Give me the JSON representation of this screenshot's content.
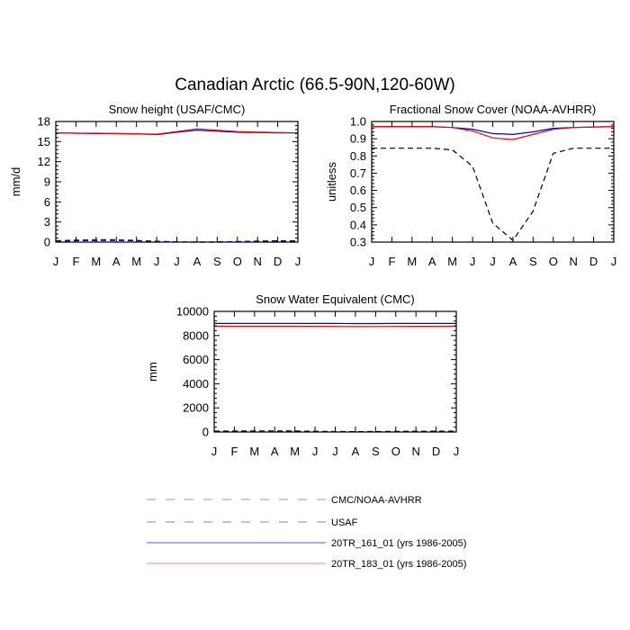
{
  "figure": {
    "title": "Canadian Arctic (66.5-90N,120-60W)"
  },
  "colors": {
    "cmc": "#000000",
    "usaf": "#0000cc",
    "r161": "#0000cc",
    "r183": "#ff0000",
    "legend_dash": "#9a9aa0",
    "legend_r161": "#5a5acc",
    "legend_r183": "#ff8080"
  },
  "legend": [
    {
      "key": "cmc",
      "label": "CMC/NOAA-AVHRR",
      "style": "dash"
    },
    {
      "key": "usaf",
      "label": "USAF",
      "style": "dash"
    },
    {
      "key": "r161",
      "label": "20TR_161_01 (yrs 1986-2005)",
      "style": "solid"
    },
    {
      "key": "r183",
      "label": "20TR_183_01 (yrs 1986-2005)",
      "style": "solid"
    }
  ],
  "chart_data": [
    {
      "type": "line",
      "title": "Snow height (USAF/CMC)",
      "ylabel": "mm/d",
      "xlabel": "",
      "categories": [
        "J",
        "F",
        "M",
        "A",
        "M",
        "J",
        "J",
        "A",
        "S",
        "O",
        "N",
        "D",
        "J"
      ],
      "ylim": [
        0,
        18
      ],
      "yticks": [
        "0",
        "3",
        "6",
        "9",
        "12",
        "15",
        "18"
      ],
      "series": [
        {
          "key": "r161",
          "values": [
            16.3,
            16.25,
            16.2,
            16.2,
            16.15,
            16.05,
            16.4,
            16.7,
            16.55,
            16.4,
            16.35,
            16.3,
            16.3
          ]
        },
        {
          "key": "r183",
          "values": [
            16.3,
            16.25,
            16.25,
            16.2,
            16.15,
            16.1,
            16.5,
            16.9,
            16.7,
            16.5,
            16.4,
            16.35,
            16.3
          ]
        },
        {
          "key": "cmc",
          "values": [
            0.15,
            0.2,
            0.25,
            0.25,
            0.2,
            0.1,
            0.02,
            0.0,
            0.0,
            0.05,
            0.1,
            0.15,
            0.15
          ]
        },
        {
          "key": "usaf",
          "values": [
            0.2,
            0.3,
            0.35,
            0.35,
            0.25,
            0.12,
            0.03,
            0.0,
            0.02,
            0.08,
            0.15,
            0.2,
            0.2
          ]
        }
      ]
    },
    {
      "type": "line",
      "title": "Fractional Snow Cover (NOAA-AVHRR)",
      "ylabel": "unitless",
      "xlabel": "",
      "categories": [
        "J",
        "F",
        "M",
        "A",
        "M",
        "J",
        "J",
        "A",
        "S",
        "O",
        "N",
        "D",
        "J"
      ],
      "ylim": [
        0.3,
        1.0
      ],
      "yticks": [
        "0.3",
        "0.4",
        "0.5",
        "0.6",
        "0.7",
        "0.8",
        "0.9",
        "1.0"
      ],
      "series": [
        {
          "key": "r161",
          "values": [
            0.97,
            0.97,
            0.97,
            0.97,
            0.965,
            0.955,
            0.93,
            0.925,
            0.94,
            0.96,
            0.965,
            0.968,
            0.97
          ]
        },
        {
          "key": "r183",
          "values": [
            0.97,
            0.97,
            0.97,
            0.97,
            0.965,
            0.945,
            0.905,
            0.895,
            0.925,
            0.955,
            0.965,
            0.968,
            0.97
          ]
        },
        {
          "key": "cmc",
          "values": [
            0.845,
            0.845,
            0.845,
            0.845,
            0.835,
            0.74,
            0.41,
            0.31,
            0.48,
            0.815,
            0.845,
            0.845,
            0.845
          ]
        }
      ]
    },
    {
      "type": "line",
      "title": "Snow Water Equivalent (CMC)",
      "ylabel": "mm",
      "xlabel": "",
      "categories": [
        "J",
        "F",
        "M",
        "A",
        "M",
        "J",
        "J",
        "A",
        "S",
        "O",
        "N",
        "D",
        "J"
      ],
      "ylim": [
        0,
        10000
      ],
      "yticks": [
        "0",
        "2000",
        "4000",
        "6000",
        "8000",
        "10000"
      ],
      "series": [
        {
          "key": "r161",
          "values": [
            9000,
            9000,
            9000,
            9000,
            9000,
            9000,
            9000,
            8995,
            8995,
            9000,
            9000,
            9000,
            9000
          ]
        },
        {
          "key": "r183",
          "values": [
            8770,
            8770,
            8770,
            8770,
            8770,
            8765,
            8750,
            8740,
            8745,
            8755,
            8760,
            8765,
            8770
          ]
        },
        {
          "key": "cmc",
          "values": [
            70,
            80,
            90,
            90,
            80,
            60,
            40,
            30,
            40,
            50,
            60,
            65,
            70
          ]
        }
      ]
    }
  ]
}
